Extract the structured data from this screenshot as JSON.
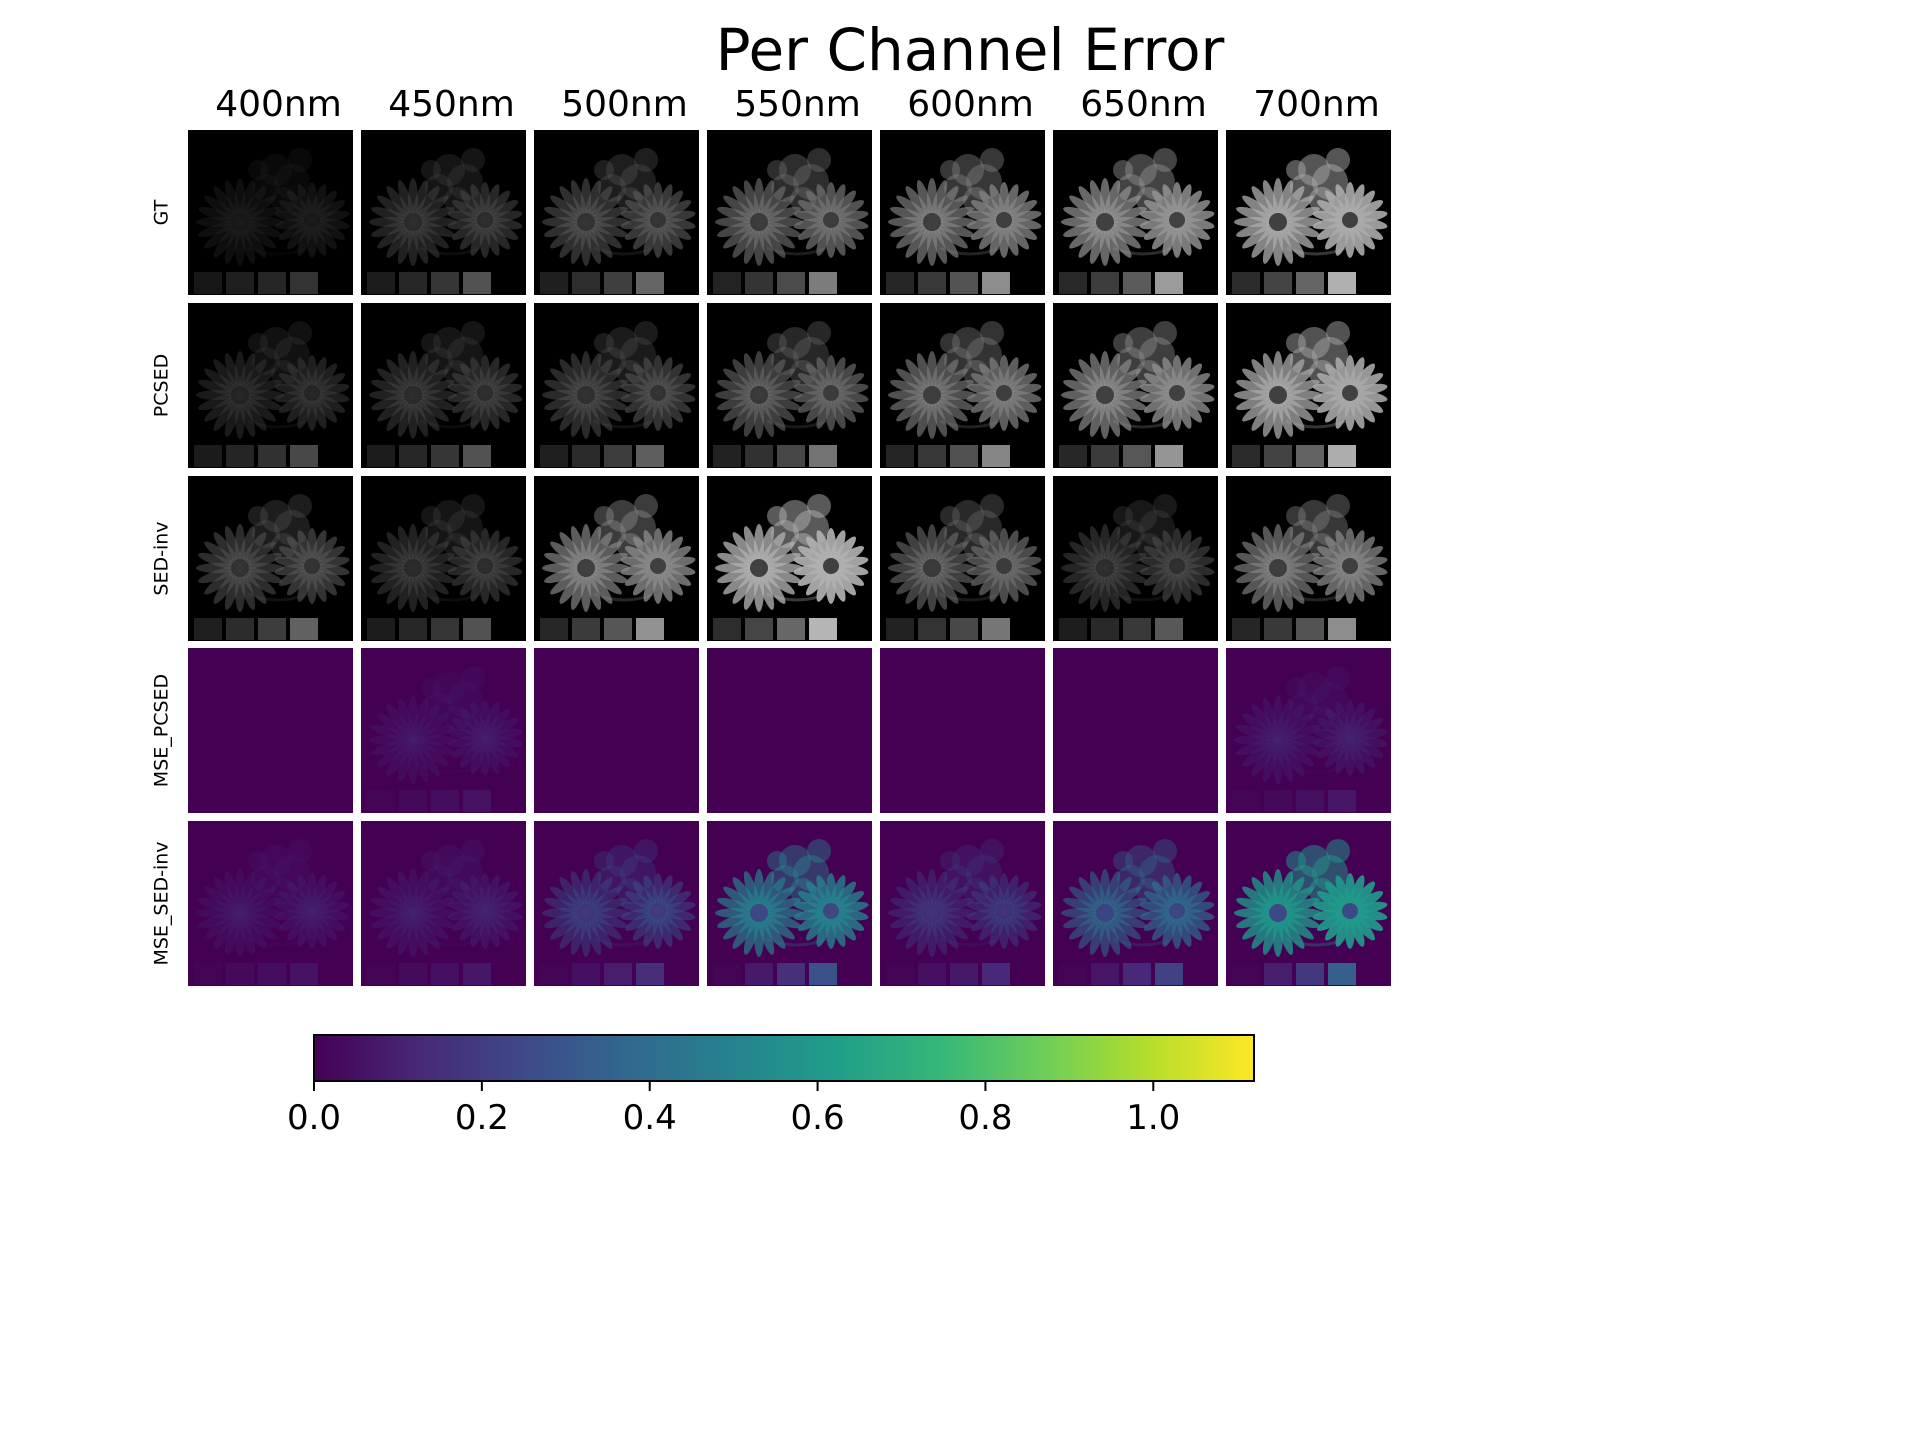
{
  "chart_data": {
    "type": "heatmap",
    "title": "Per Channel Error",
    "columns": [
      "400nm",
      "450nm",
      "500nm",
      "550nm",
      "600nm",
      "650nm",
      "700nm"
    ],
    "rows": [
      {
        "label": "GT",
        "kind": "gray",
        "intensity": [
          0.1,
          0.3,
          0.42,
          0.58,
          0.68,
          0.78,
          0.92
        ]
      },
      {
        "label": "PCSED",
        "kind": "gray",
        "intensity": [
          0.24,
          0.3,
          0.38,
          0.52,
          0.64,
          0.74,
          0.9
        ]
      },
      {
        "label": "SED-inv",
        "kind": "gray",
        "intensity": [
          0.4,
          0.3,
          0.72,
          0.95,
          0.54,
          0.34,
          0.68
        ]
      },
      {
        "label": "MSE_PCSED",
        "kind": "error",
        "intensity": [
          0.0,
          0.02,
          0.0,
          0.0,
          0.01,
          0.0,
          0.05
        ]
      },
      {
        "label": "MSE_SED-inv",
        "kind": "error",
        "intensity": [
          0.03,
          0.06,
          0.26,
          0.6,
          0.2,
          0.45,
          0.75
        ]
      }
    ],
    "colorbar": {
      "min": 0.0,
      "max": 1.12,
      "ticks": [
        0.0,
        0.2,
        0.4,
        0.6,
        0.8,
        1.0
      ],
      "tick_labels": [
        "0.0",
        "0.2",
        "0.4",
        "0.6",
        "0.8",
        "1.0"
      ],
      "colormap": "viridis",
      "orientation": "horizontal",
      "placement": "bottom"
    },
    "colors": {
      "viridis": [
        "#440154",
        "#482878",
        "#3e4989",
        "#31688e",
        "#26828e",
        "#1f9e89",
        "#35b779",
        "#6ece58",
        "#b5de2b",
        "#fde725"
      ],
      "background": "#ffffff",
      "panel_dark": "#000000"
    }
  }
}
